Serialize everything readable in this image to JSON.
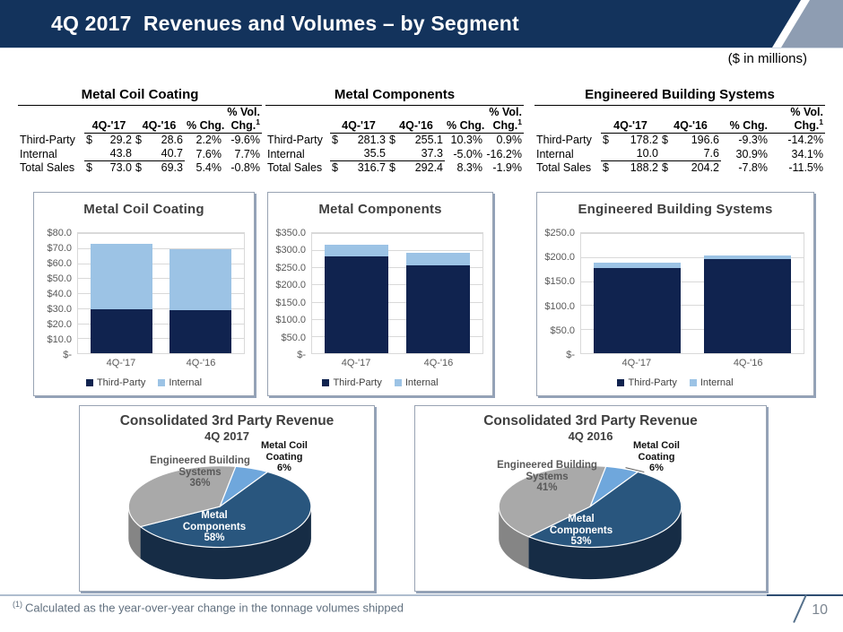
{
  "header": {
    "title": "4Q 2017  Revenues and Volumes – by Segment",
    "units_note": "($ in millions)",
    "bar_color": "#13335C",
    "accent_color": "#8E9DB2"
  },
  "tables": [
    {
      "title": "Metal Coil Coating",
      "header": {
        "vol_top": "% Vol.",
        "col1": "4Q-'17",
        "col2": "4Q-'16",
        "col3": "% Chg.",
        "col4": "Chg.",
        "col4_sup": "1"
      },
      "rows": [
        {
          "label": "Third-Party",
          "c17_d": "$",
          "c17": "29.2",
          "c16_d": "$",
          "c16": "28.6",
          "chg": "2.2%",
          "vol": "-9.6%"
        },
        {
          "label": "Internal",
          "c17_d": "",
          "c17": "43.8",
          "c16_d": "",
          "c16": "40.7",
          "chg": "7.6%",
          "vol": "7.7%"
        },
        {
          "label": "Total Sales",
          "c17_d": "$",
          "c17": "73.0",
          "c16_d": "$",
          "c16": "69.3",
          "chg": "5.4%",
          "vol": "-0.8%"
        }
      ]
    },
    {
      "title": "Metal Components",
      "header": {
        "vol_top": "% Vol.",
        "col1": "4Q-'17",
        "col2": "4Q-'16",
        "col3": "% Chg.",
        "col4": "Chg.",
        "col4_sup": "1"
      },
      "rows": [
        {
          "label": "Third-Party",
          "c17_d": "$",
          "c17": "281.3",
          "c16_d": "$",
          "c16": "255.1",
          "chg": "10.3%",
          "vol": "0.9%"
        },
        {
          "label": "Internal",
          "c17_d": "",
          "c17": "35.5",
          "c16_d": "",
          "c16": "37.3",
          "chg": "-5.0%",
          "vol": "-16.2%"
        },
        {
          "label": "Total Sales",
          "c17_d": "$",
          "c17": "316.7",
          "c16_d": "$",
          "c16": "292.4",
          "chg": "8.3%",
          "vol": "-1.9%"
        }
      ]
    },
    {
      "title": "Engineered Building Systems",
      "header": {
        "vol_top": "% Vol.",
        "col1": "4Q-'17",
        "col2": "4Q-'16",
        "col3": "% Chg.",
        "col4": "Chg.",
        "col4_sup": "1"
      },
      "rows": [
        {
          "label": "Third-Party",
          "c17_d": "$",
          "c17": "178.2",
          "c16_d": "$",
          "c16": "196.6",
          "chg": "-9.3%",
          "vol": "-14.2%"
        },
        {
          "label": "Internal",
          "c17_d": "",
          "c17": "10.0",
          "c16_d": "",
          "c16": "7.6",
          "chg": "30.9%",
          "vol": "34.1%"
        },
        {
          "label": "Total Sales",
          "c17_d": "$",
          "c17": "188.2",
          "c16_d": "$",
          "c16": "204.2",
          "chg": "-7.8%",
          "vol": "-11.5%"
        }
      ]
    }
  ],
  "chart_data": [
    {
      "type": "bar",
      "stacked": true,
      "title": "Metal Coil Coating",
      "categories": [
        "4Q-'17",
        "4Q-'16"
      ],
      "series": [
        {
          "name": "Third-Party",
          "values": [
            29.2,
            28.6
          ],
          "color": "#10234F"
        },
        {
          "name": "Internal",
          "values": [
            43.8,
            40.7
          ],
          "color": "#9CC3E5"
        }
      ],
      "ylim": [
        0,
        80
      ],
      "ytick_step": 10,
      "ytick_labels": [
        "$80.0",
        "$70.0",
        "$60.0",
        "$50.0",
        "$40.0",
        "$30.0",
        "$20.0",
        "$10.0",
        "$-"
      ],
      "grid": true,
      "legend_position": "bottom"
    },
    {
      "type": "bar",
      "stacked": true,
      "title": "Metal Components",
      "categories": [
        "4Q-'17",
        "4Q-'16"
      ],
      "series": [
        {
          "name": "Third-Party",
          "values": [
            281.3,
            255.1
          ],
          "color": "#10234F"
        },
        {
          "name": "Internal",
          "values": [
            35.5,
            37.3
          ],
          "color": "#9CC3E5"
        }
      ],
      "ylim": [
        0,
        350
      ],
      "ytick_step": 50,
      "ytick_labels": [
        "$350.0",
        "$300.0",
        "$250.0",
        "$200.0",
        "$150.0",
        "$100.0",
        "$50.0",
        "$-"
      ],
      "grid": true,
      "legend_position": "bottom"
    },
    {
      "type": "bar",
      "stacked": true,
      "title": "Engineered Building Systems",
      "categories": [
        "4Q-'17",
        "4Q-'16"
      ],
      "series": [
        {
          "name": "Third-Party",
          "values": [
            178.2,
            196.6
          ],
          "color": "#10234F"
        },
        {
          "name": "Internal",
          "values": [
            10.0,
            7.6
          ],
          "color": "#9CC3E5"
        }
      ],
      "ylim": [
        0,
        250
      ],
      "ytick_step": 50,
      "ytick_labels": [
        "$250.0",
        "$200.0",
        "$150.0",
        "$100.0",
        "$50.0",
        "$-"
      ],
      "grid": true,
      "legend_position": "bottom"
    },
    {
      "type": "pie",
      "title": "Consolidated 3rd Party Revenue",
      "subtitle": "4Q 2017",
      "start_angle": 10,
      "leader_line": false,
      "slices": [
        {
          "key": "mcc",
          "label": "Metal Coil Coating",
          "pct": 6,
          "color": "#6FA7DC",
          "side_color": "#4F87BF",
          "label_lines": [
            "Metal Coil",
            "Coating",
            "6%"
          ]
        },
        {
          "key": "mc",
          "label": "Metal Components",
          "pct": 58,
          "color": "#29567E",
          "side_color": "#162C45",
          "label_lines": [
            "Metal",
            "Components",
            "58%"
          ]
        },
        {
          "key": "ebs",
          "label": "Engineered Building Systems",
          "pct": 36,
          "color": "#A9A9A9",
          "side_color": "#858585",
          "label_lines": [
            "Engineered Building",
            "Systems",
            "36%"
          ]
        }
      ]
    },
    {
      "type": "pie",
      "title": "Consolidated 3rd Party Revenue",
      "subtitle": "4Q 2016",
      "start_angle": 10,
      "leader_line": true,
      "slices": [
        {
          "key": "mcc",
          "label": "Metal Coil Coating",
          "pct": 6,
          "color": "#6FA7DC",
          "side_color": "#4F87BF",
          "label_lines": [
            "Metal Coil",
            "Coating",
            "6%"
          ]
        },
        {
          "key": "mc",
          "label": "Metal Components",
          "pct": 53,
          "color": "#29567E",
          "side_color": "#162C45",
          "label_lines": [
            "Metal",
            "Components",
            "53%"
          ]
        },
        {
          "key": "ebs",
          "label": "Engineered Building Systems",
          "pct": 41,
          "color": "#A9A9A9",
          "side_color": "#858585",
          "label_lines": [
            "Engineered Building",
            "Systems",
            "41%"
          ]
        }
      ]
    }
  ],
  "footnote": {
    "sup": "(1)",
    "text": "Calculated as the year-over-year change in the tonnage volumes shipped"
  },
  "page_number": "10"
}
